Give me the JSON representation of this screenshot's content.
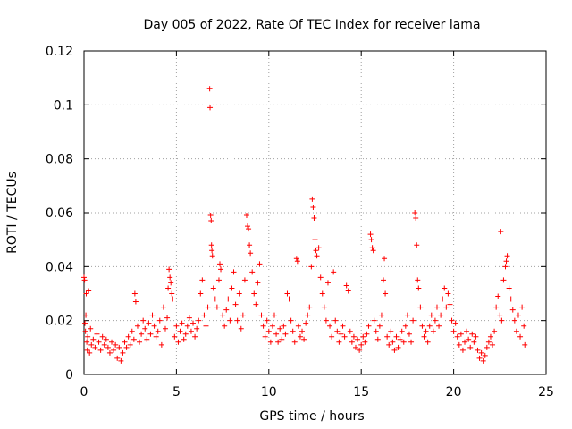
{
  "chart_data": {
    "type": "scatter",
    "title": "Day 005 of 2022, Rate Of TEC Index for receiver lama",
    "xlabel": "GPS time / hours",
    "ylabel": "ROTI / TECUs",
    "xlim": [
      0,
      25
    ],
    "ylim": [
      0,
      0.12
    ],
    "xticks": [
      0,
      5,
      10,
      15,
      20,
      25
    ],
    "xtick_labels": [
      "0",
      "5",
      "10",
      "15",
      "20",
      "25"
    ],
    "yticks": [
      0,
      0.02,
      0.04,
      0.06,
      0.08,
      0.1,
      0.12
    ],
    "ytick_labels": [
      "0",
      "0.02",
      "0.04",
      "0.06",
      "0.08",
      "0.1",
      "0.12"
    ],
    "grid": true,
    "marker": "+",
    "color": "#ff0000",
    "series": [
      {
        "points": [
          [
            0.0,
            0.036
          ],
          [
            0.03,
            0.035
          ],
          [
            0.05,
            0.019
          ],
          [
            0.08,
            0.016
          ],
          [
            0.1,
            0.022
          ],
          [
            0.12,
            0.03
          ],
          [
            0.15,
            0.012
          ],
          [
            0.18,
            0.009
          ],
          [
            0.2,
            0.014
          ],
          [
            0.25,
            0.031
          ],
          [
            0.3,
            0.008
          ],
          [
            0.35,
            0.017
          ],
          [
            0.4,
            0.011
          ],
          [
            0.5,
            0.013
          ],
          [
            0.6,
            0.01
          ],
          [
            0.7,
            0.015
          ],
          [
            0.8,
            0.012
          ],
          [
            0.9,
            0.009
          ],
          [
            1.0,
            0.014
          ],
          [
            1.1,
            0.011
          ],
          [
            1.2,
            0.013
          ],
          [
            1.3,
            0.01
          ],
          [
            1.4,
            0.008
          ],
          [
            1.5,
            0.012
          ],
          [
            1.6,
            0.009
          ],
          [
            1.7,
            0.011
          ],
          [
            1.8,
            0.006
          ],
          [
            1.9,
            0.01
          ],
          [
            2.0,
            0.005
          ],
          [
            2.1,
            0.008
          ],
          [
            2.2,
            0.012
          ],
          [
            2.3,
            0.01
          ],
          [
            2.4,
            0.014
          ],
          [
            2.5,
            0.011
          ],
          [
            2.6,
            0.016
          ],
          [
            2.7,
            0.013
          ],
          [
            2.75,
            0.03
          ],
          [
            2.8,
            0.027
          ],
          [
            2.9,
            0.018
          ],
          [
            3.0,
            0.012
          ],
          [
            3.1,
            0.015
          ],
          [
            3.2,
            0.02
          ],
          [
            3.3,
            0.017
          ],
          [
            3.4,
            0.013
          ],
          [
            3.5,
            0.019
          ],
          [
            3.6,
            0.015
          ],
          [
            3.7,
            0.022
          ],
          [
            3.8,
            0.018
          ],
          [
            3.9,
            0.014
          ],
          [
            4.0,
            0.016
          ],
          [
            4.1,
            0.02
          ],
          [
            4.2,
            0.011
          ],
          [
            4.3,
            0.025
          ],
          [
            4.4,
            0.017
          ],
          [
            4.5,
            0.021
          ],
          [
            4.55,
            0.032
          ],
          [
            4.6,
            0.039
          ],
          [
            4.65,
            0.036
          ],
          [
            4.7,
            0.034
          ],
          [
            4.75,
            0.03
          ],
          [
            4.8,
            0.028
          ],
          [
            4.9,
            0.014
          ],
          [
            5.0,
            0.018
          ],
          [
            5.1,
            0.012
          ],
          [
            5.2,
            0.016
          ],
          [
            5.3,
            0.019
          ],
          [
            5.4,
            0.013
          ],
          [
            5.5,
            0.015
          ],
          [
            5.6,
            0.018
          ],
          [
            5.7,
            0.021
          ],
          [
            5.8,
            0.016
          ],
          [
            5.9,
            0.019
          ],
          [
            6.0,
            0.014
          ],
          [
            6.1,
            0.017
          ],
          [
            6.2,
            0.02
          ],
          [
            6.3,
            0.03
          ],
          [
            6.4,
            0.035
          ],
          [
            6.5,
            0.022
          ],
          [
            6.6,
            0.018
          ],
          [
            6.7,
            0.025
          ],
          [
            6.8,
            0.106
          ],
          [
            6.82,
            0.099
          ],
          [
            6.85,
            0.059
          ],
          [
            6.88,
            0.057
          ],
          [
            6.9,
            0.048
          ],
          [
            6.92,
            0.046
          ],
          [
            6.95,
            0.044
          ],
          [
            7.0,
            0.032
          ],
          [
            7.1,
            0.028
          ],
          [
            7.2,
            0.025
          ],
          [
            7.3,
            0.035
          ],
          [
            7.35,
            0.041
          ],
          [
            7.4,
            0.039
          ],
          [
            7.5,
            0.022
          ],
          [
            7.6,
            0.018
          ],
          [
            7.7,
            0.024
          ],
          [
            7.8,
            0.028
          ],
          [
            7.9,
            0.02
          ],
          [
            8.0,
            0.032
          ],
          [
            8.1,
            0.038
          ],
          [
            8.2,
            0.026
          ],
          [
            8.3,
            0.02
          ],
          [
            8.4,
            0.03
          ],
          [
            8.5,
            0.017
          ],
          [
            8.6,
            0.022
          ],
          [
            8.7,
            0.035
          ],
          [
            8.8,
            0.059
          ],
          [
            8.85,
            0.055
          ],
          [
            8.9,
            0.054
          ],
          [
            8.95,
            0.048
          ],
          [
            9.0,
            0.045
          ],
          [
            9.1,
            0.038
          ],
          [
            9.2,
            0.03
          ],
          [
            9.3,
            0.026
          ],
          [
            9.4,
            0.034
          ],
          [
            9.5,
            0.041
          ],
          [
            9.6,
            0.022
          ],
          [
            9.7,
            0.018
          ],
          [
            9.8,
            0.014
          ],
          [
            9.9,
            0.02
          ],
          [
            10.0,
            0.016
          ],
          [
            10.1,
            0.012
          ],
          [
            10.2,
            0.018
          ],
          [
            10.3,
            0.022
          ],
          [
            10.4,
            0.015
          ],
          [
            10.5,
            0.012
          ],
          [
            10.6,
            0.017
          ],
          [
            10.7,
            0.013
          ],
          [
            10.8,
            0.018
          ],
          [
            10.9,
            0.015
          ],
          [
            11.0,
            0.03
          ],
          [
            11.1,
            0.028
          ],
          [
            11.2,
            0.02
          ],
          [
            11.3,
            0.016
          ],
          [
            11.4,
            0.012
          ],
          [
            11.5,
            0.043
          ],
          [
            11.55,
            0.042
          ],
          [
            11.6,
            0.018
          ],
          [
            11.7,
            0.014
          ],
          [
            11.8,
            0.016
          ],
          [
            11.9,
            0.013
          ],
          [
            12.0,
            0.019
          ],
          [
            12.1,
            0.022
          ],
          [
            12.2,
            0.025
          ],
          [
            12.3,
            0.04
          ],
          [
            12.35,
            0.065
          ],
          [
            12.4,
            0.062
          ],
          [
            12.45,
            0.058
          ],
          [
            12.5,
            0.05
          ],
          [
            12.55,
            0.046
          ],
          [
            12.6,
            0.044
          ],
          [
            12.7,
            0.047
          ],
          [
            12.8,
            0.036
          ],
          [
            12.9,
            0.03
          ],
          [
            13.0,
            0.025
          ],
          [
            13.1,
            0.02
          ],
          [
            13.2,
            0.034
          ],
          [
            13.3,
            0.018
          ],
          [
            13.4,
            0.014
          ],
          [
            13.5,
            0.038
          ],
          [
            13.6,
            0.02
          ],
          [
            13.7,
            0.016
          ],
          [
            13.8,
            0.012
          ],
          [
            13.9,
            0.015
          ],
          [
            14.0,
            0.018
          ],
          [
            14.1,
            0.014
          ],
          [
            14.2,
            0.033
          ],
          [
            14.3,
            0.031
          ],
          [
            14.4,
            0.016
          ],
          [
            14.5,
            0.012
          ],
          [
            14.6,
            0.014
          ],
          [
            14.7,
            0.01
          ],
          [
            14.8,
            0.013
          ],
          [
            14.9,
            0.009
          ],
          [
            15.0,
            0.011
          ],
          [
            15.1,
            0.014
          ],
          [
            15.2,
            0.012
          ],
          [
            15.3,
            0.015
          ],
          [
            15.4,
            0.018
          ],
          [
            15.5,
            0.052
          ],
          [
            15.55,
            0.05
          ],
          [
            15.6,
            0.047
          ],
          [
            15.65,
            0.046
          ],
          [
            15.7,
            0.02
          ],
          [
            15.8,
            0.016
          ],
          [
            15.9,
            0.013
          ],
          [
            16.0,
            0.018
          ],
          [
            16.1,
            0.022
          ],
          [
            16.2,
            0.035
          ],
          [
            16.25,
            0.043
          ],
          [
            16.3,
            0.03
          ],
          [
            16.4,
            0.014
          ],
          [
            16.5,
            0.011
          ],
          [
            16.6,
            0.016
          ],
          [
            16.7,
            0.012
          ],
          [
            16.8,
            0.009
          ],
          [
            16.9,
            0.014
          ],
          [
            17.0,
            0.01
          ],
          [
            17.1,
            0.013
          ],
          [
            17.2,
            0.016
          ],
          [
            17.3,
            0.012
          ],
          [
            17.4,
            0.018
          ],
          [
            17.5,
            0.022
          ],
          [
            17.6,
            0.015
          ],
          [
            17.7,
            0.012
          ],
          [
            17.8,
            0.02
          ],
          [
            17.9,
            0.06
          ],
          [
            17.95,
            0.058
          ],
          [
            18.0,
            0.048
          ],
          [
            18.05,
            0.035
          ],
          [
            18.1,
            0.032
          ],
          [
            18.2,
            0.025
          ],
          [
            18.3,
            0.018
          ],
          [
            18.4,
            0.014
          ],
          [
            18.5,
            0.016
          ],
          [
            18.6,
            0.012
          ],
          [
            18.7,
            0.018
          ],
          [
            18.8,
            0.022
          ],
          [
            18.9,
            0.016
          ],
          [
            19.0,
            0.02
          ],
          [
            19.1,
            0.025
          ],
          [
            19.2,
            0.018
          ],
          [
            19.3,
            0.022
          ],
          [
            19.4,
            0.028
          ],
          [
            19.5,
            0.032
          ],
          [
            19.6,
            0.025
          ],
          [
            19.7,
            0.03
          ],
          [
            19.8,
            0.026
          ],
          [
            19.9,
            0.02
          ],
          [
            20.0,
            0.016
          ],
          [
            20.1,
            0.019
          ],
          [
            20.2,
            0.014
          ],
          [
            20.3,
            0.011
          ],
          [
            20.4,
            0.015
          ],
          [
            20.5,
            0.009
          ],
          [
            20.6,
            0.012
          ],
          [
            20.7,
            0.016
          ],
          [
            20.8,
            0.013
          ],
          [
            20.9,
            0.01
          ],
          [
            21.0,
            0.015
          ],
          [
            21.1,
            0.012
          ],
          [
            21.2,
            0.014
          ],
          [
            21.3,
            0.009
          ],
          [
            21.4,
            0.006
          ],
          [
            21.5,
            0.008
          ],
          [
            21.6,
            0.005
          ],
          [
            21.7,
            0.007
          ],
          [
            21.8,
            0.01
          ],
          [
            21.9,
            0.012
          ],
          [
            22.0,
            0.014
          ],
          [
            22.1,
            0.011
          ],
          [
            22.2,
            0.016
          ],
          [
            22.3,
            0.025
          ],
          [
            22.4,
            0.029
          ],
          [
            22.5,
            0.022
          ],
          [
            22.55,
            0.053
          ],
          [
            22.6,
            0.02
          ],
          [
            22.7,
            0.035
          ],
          [
            22.8,
            0.04
          ],
          [
            22.85,
            0.042
          ],
          [
            22.9,
            0.044
          ],
          [
            23.0,
            0.032
          ],
          [
            23.1,
            0.028
          ],
          [
            23.2,
            0.024
          ],
          [
            23.3,
            0.02
          ],
          [
            23.4,
            0.016
          ],
          [
            23.5,
            0.022
          ],
          [
            23.6,
            0.014
          ],
          [
            23.7,
            0.025
          ],
          [
            23.8,
            0.018
          ],
          [
            23.85,
            0.011
          ]
        ]
      }
    ]
  }
}
